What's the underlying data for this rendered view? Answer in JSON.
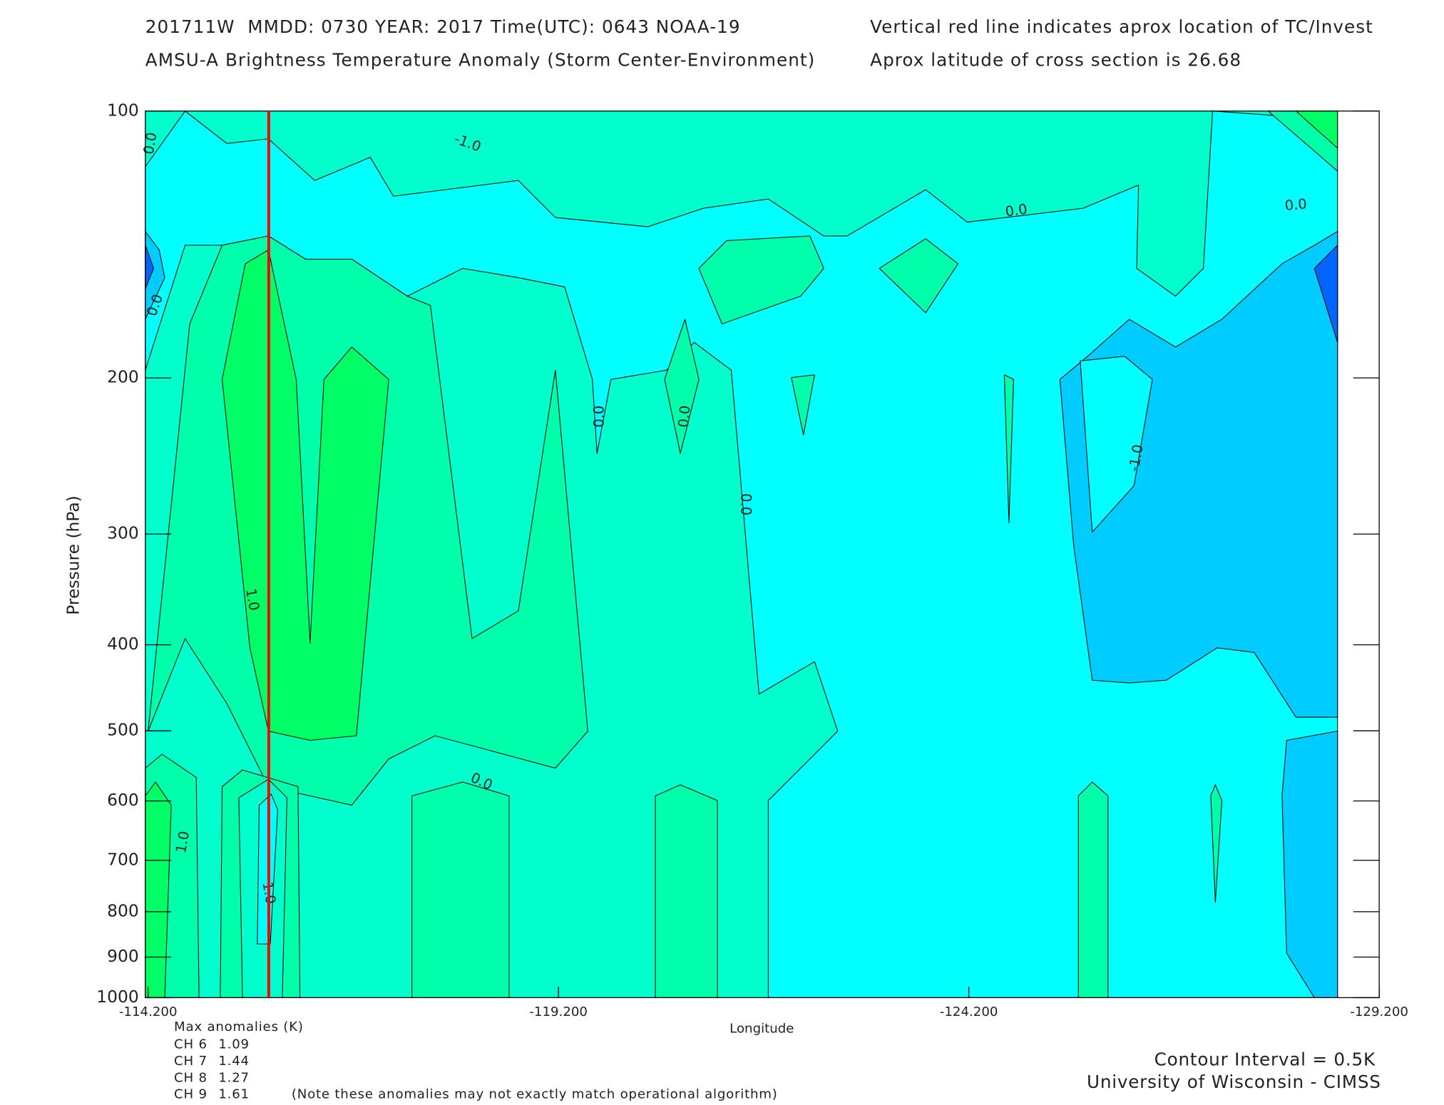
{
  "chart_data": {
    "type": "contour",
    "header": [
      "201711W  MMDD: 0730 YEAR: 2017 Time(UTC): 0643 NOAA-19",
      "AMSU-A Brightness Temperature Anomaly (Storm Center-Environment)",
      "Vertical red line indicates aprox location of TC/Invest",
      "Aprox latitude of cross section is 26.68"
    ],
    "xlabel": "Longitude",
    "ylabel": "Pressure (hPa)",
    "xlim": [
      -114.2,
      -129.2
    ],
    "xticks": [
      {
        "value": -114.2,
        "label": "-114.200"
      },
      {
        "value": -119.2,
        "label": "-119.200"
      },
      {
        "value": -124.2,
        "label": "-124.200"
      },
      {
        "value": -129.2,
        "label": "-129.200"
      }
    ],
    "ylim": [
      100,
      1000
    ],
    "yscale": "log",
    "yticks": [
      100,
      200,
      300,
      400,
      500,
      600,
      700,
      800,
      900,
      1000
    ],
    "storm_longitude": -115.67,
    "storm_line_color": "#ff0000",
    "levels": [
      {
        "value": -1.5,
        "color": "#0066ff"
      },
      {
        "value": -1.0,
        "color": "#00ccff"
      },
      {
        "value": -0.5,
        "color": "#00ffff"
      },
      {
        "value": 0,
        "color": "#00ffcc"
      },
      {
        "value": 0.5,
        "color": "#00ffaa"
      },
      {
        "value": 1.0,
        "color": "#00ff66"
      }
    ],
    "contour_labels": [
      "0.0",
      "0.0",
      "-1.0",
      "0.0",
      "0.0",
      "0.0",
      "0.0",
      "0.0",
      "-1.0",
      "1.0",
      "0.0",
      "1.0",
      "1.0"
    ],
    "annotation_color": "#ff5a2a",
    "max_anomalies_title": "Max anomalies (K)",
    "channels": [
      {
        "label": "CH 6",
        "value": 1.09
      },
      {
        "label": "CH 7",
        "value": 1.44
      },
      {
        "label": "CH 8",
        "value": 1.27
      },
      {
        "label": "CH 9",
        "value": 1.61
      }
    ],
    "note": "(Note these anomalies may not exactly match operational algorithm)",
    "contour_interval": "Contour Interval = 0.5K",
    "credit": "University of Wisconsin - CIMSS"
  }
}
